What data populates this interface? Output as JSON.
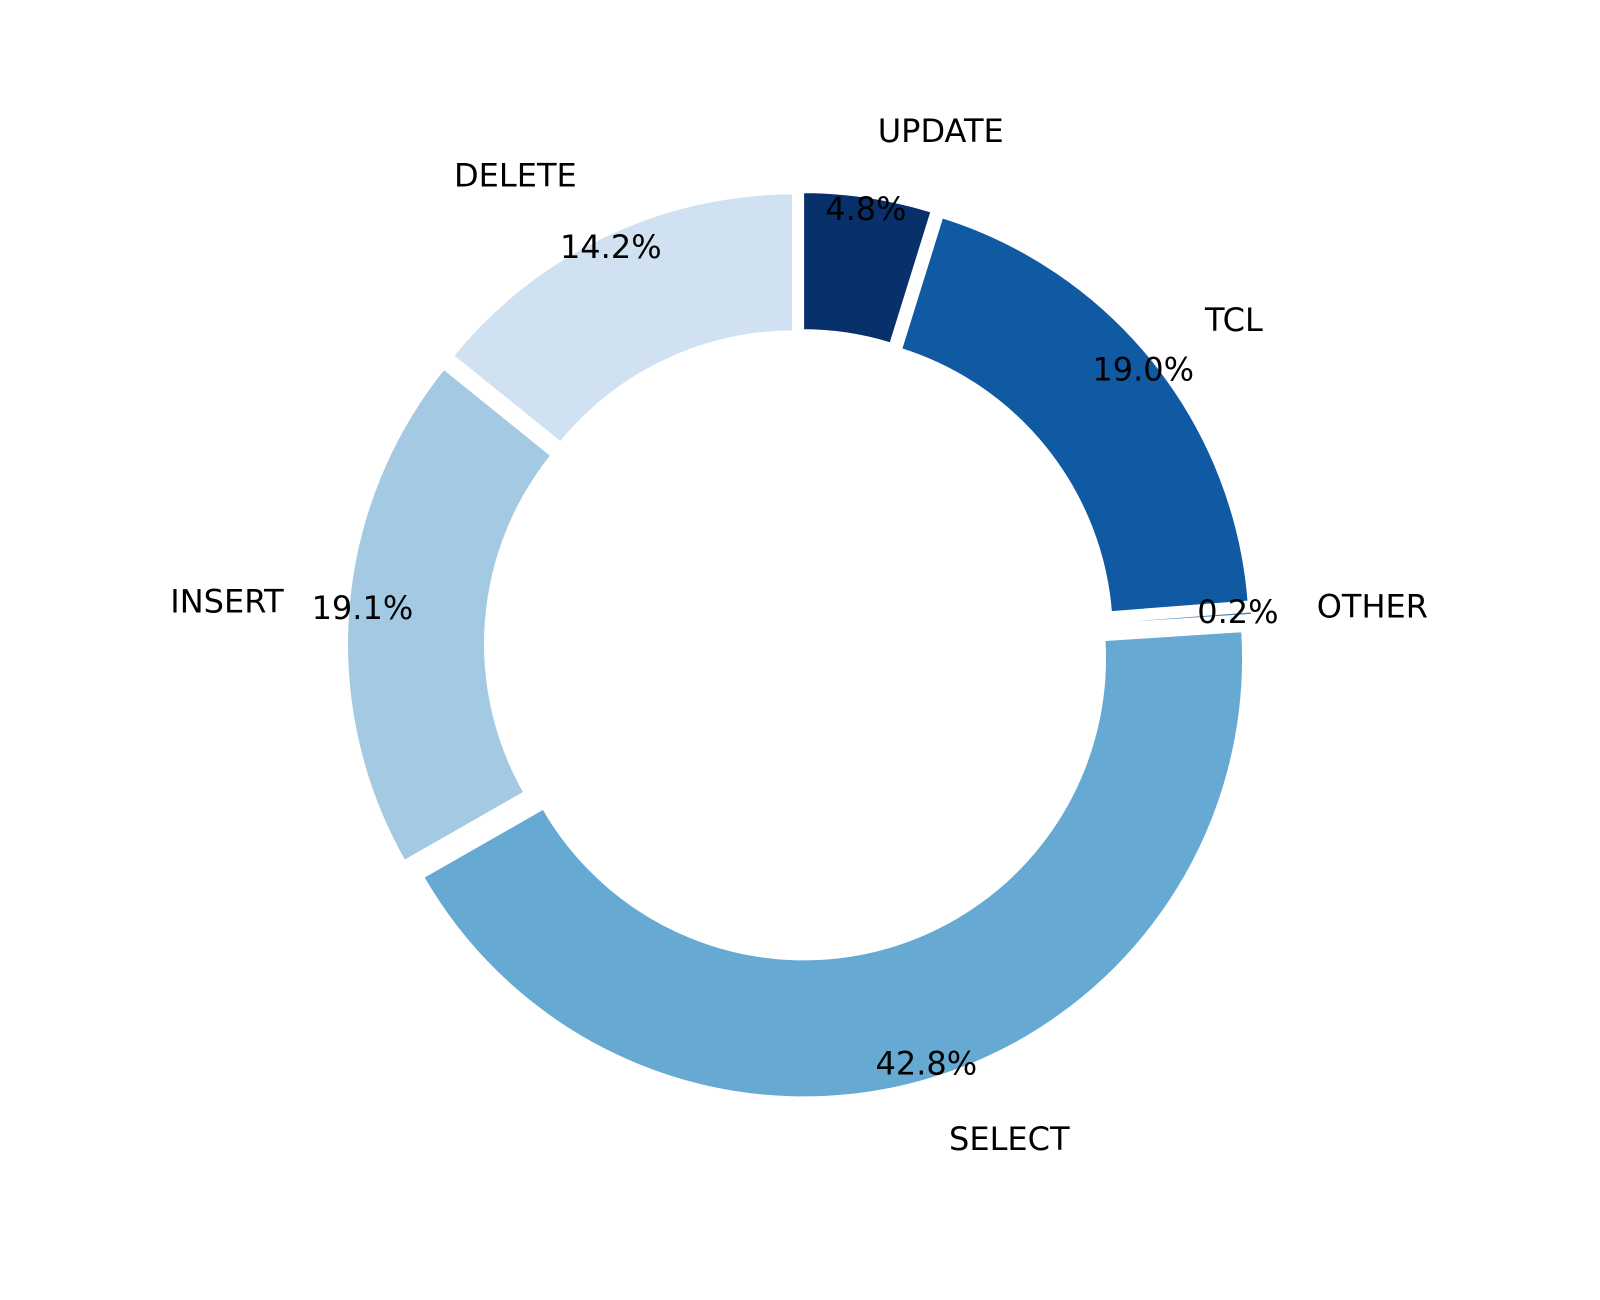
{
  "chart_data": {
    "type": "pie",
    "donut": true,
    "start_angle_deg": 90,
    "direction": "clockwise",
    "exploded": true,
    "legend": "none",
    "slices": [
      {
        "label": "UPDATE",
        "pct_label": "4.8%",
        "value": 4.8,
        "color": "#08306b"
      },
      {
        "label": "TCL",
        "pct_label": "19.0%",
        "value": 19.0,
        "color": "#1059a3"
      },
      {
        "label": "OTHER",
        "pct_label": "0.2%",
        "value": 0.2,
        "color": "#3a85c2"
      },
      {
        "label": "SELECT",
        "pct_label": "42.8%",
        "value": 42.8,
        "color": "#66a9d3"
      },
      {
        "label": "INSERT",
        "pct_label": "19.1%",
        "value": 19.1,
        "color": "#a3cae2"
      },
      {
        "label": "DELETE",
        "pct_label": "14.2%",
        "value": 14.2,
        "color": "#d0e1f2"
      }
    ]
  }
}
